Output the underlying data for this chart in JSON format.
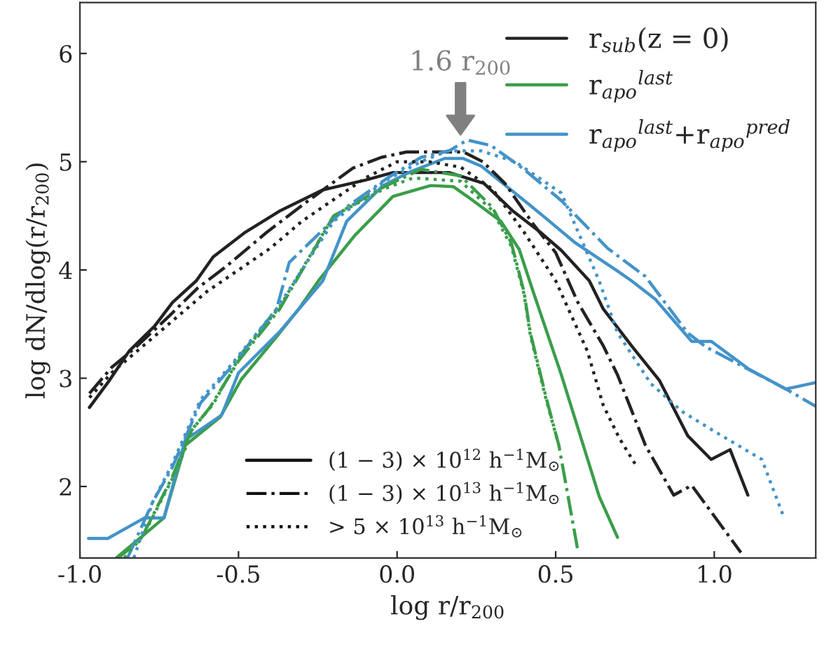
{
  "chart_data": {
    "type": "line",
    "xlabel": "log r/r$_{200}$",
    "ylabel": "log dN/dlog(r/r$_{200}$)",
    "xlim": [
      -1.0,
      1.32
    ],
    "ylim": [
      1.34,
      6.47
    ],
    "xticks": [
      {
        "value": -1,
        "label": "-1.0"
      },
      {
        "value": -0.5,
        "label": "-0.5"
      },
      {
        "value": 0,
        "label": "0.0"
      },
      {
        "value": 0.5,
        "label": "0.5"
      },
      {
        "value": 1,
        "label": "1.0"
      }
    ],
    "yticks": [
      2,
      3,
      4,
      5,
      6
    ],
    "grid": false,
    "legend": "top right",
    "marker": "none",
    "annotations": [
      {
        "text": "1.6 r$_{200}$",
        "x": 0.2,
        "y": 5.25
      },
      "(1 − 3) × 10$^{12}$ h$^{−1}$M$_{⊙}$",
      "(1 − 3) × 10$^{13}$ h$^{−1}$M$_{⊙}$",
      "> 5 × 10$^{13}$ h$^{−1}$M$_{⊙}$"
    ],
    "series": [
      {
        "name": "r$_{sub}$(z = 0)",
        "color": "#222222",
        "line_style": "solid",
        "x": [
          -0.97,
          -0.907,
          -0.845,
          -0.765,
          -0.708,
          -0.633,
          -0.58,
          -0.478,
          -0.367,
          -0.234,
          -0.1,
          -0.013,
          0.075,
          0.164,
          0.274,
          0.363,
          0.451,
          0.518,
          0.606,
          0.65,
          0.739,
          0.827,
          0.916,
          0.99,
          1.05,
          1.106
        ],
        "values": [
          2.73,
          2.98,
          3.25,
          3.48,
          3.7,
          3.9,
          4.12,
          4.35,
          4.55,
          4.74,
          4.83,
          4.9,
          4.9,
          4.9,
          4.8,
          4.55,
          4.35,
          4.18,
          3.9,
          3.64,
          3.3,
          2.98,
          2.47,
          2.25,
          2.34,
          1.92
        ]
      },
      {
        "name": "r$_{apo}$$^{last}$",
        "color": "#3a9e4a",
        "line_style": "solid",
        "x": [
          -0.885,
          -0.735,
          -0.668,
          -0.558,
          -0.491,
          -0.381,
          -0.31,
          -0.248,
          -0.133,
          -0.013,
          0.106,
          0.177,
          0.221,
          0.327,
          0.385,
          0.429,
          0.518,
          0.637,
          0.695
        ],
        "values": [
          1.34,
          1.71,
          2.38,
          2.64,
          2.99,
          3.38,
          3.64,
          3.9,
          4.32,
          4.68,
          4.78,
          4.77,
          4.68,
          4.45,
          4.19,
          3.8,
          3.03,
          1.91,
          1.53
        ]
      },
      {
        "name": "r$_{apo}$$^{last}$+r$_{apo}$$^{pred}$",
        "color": "#4393c9",
        "line_style": "solid",
        "x": [
          -0.973,
          -0.912,
          -0.796,
          -0.735,
          -0.668,
          -0.553,
          -0.5,
          -0.367,
          -0.234,
          -0.159,
          -0.044,
          0.044,
          0.15,
          0.208,
          0.265,
          0.372,
          0.46,
          0.562,
          0.695,
          0.739,
          0.814,
          0.929,
          0.991,
          1.106,
          1.226,
          1.32
        ],
        "values": [
          1.52,
          1.52,
          1.71,
          1.71,
          2.43,
          2.66,
          3.05,
          3.44,
          3.9,
          4.45,
          4.78,
          4.91,
          5.03,
          5.03,
          4.96,
          4.71,
          4.5,
          4.25,
          3.99,
          3.9,
          3.73,
          3.34,
          3.34,
          3.09,
          2.9,
          2.96
        ]
      },
      {
        "color": "#222222",
        "line_style": "dashdot",
        "x": [
          -0.97,
          -0.9,
          -0.83,
          -0.72,
          -0.63,
          -0.54,
          -0.41,
          -0.28,
          -0.14,
          -0.05,
          0.03,
          0.21,
          0.27,
          0.34,
          0.43,
          0.5,
          0.57,
          0.65,
          0.695,
          0.783,
          0.872,
          0.929,
          1.084
        ],
        "values": [
          2.86,
          3.1,
          3.27,
          3.57,
          3.83,
          4.03,
          4.35,
          4.64,
          4.94,
          5.04,
          5.09,
          5.09,
          5.0,
          4.8,
          4.42,
          4.16,
          3.7,
          3.3,
          3.03,
          2.38,
          1.92,
          2.01,
          1.39
        ]
      },
      {
        "color": "#3a9e4a",
        "line_style": "dashdot",
        "x": [
          -0.88,
          -0.81,
          -0.71,
          -0.65,
          -0.59,
          -0.5,
          -0.37,
          -0.2,
          -0.04,
          0.075,
          0.2,
          0.3,
          0.36,
          0.4,
          0.42,
          0.47,
          0.51,
          0.571
        ],
        "values": [
          1.34,
          1.5,
          2.08,
          2.51,
          2.73,
          3.16,
          3.64,
          4.5,
          4.77,
          4.93,
          4.87,
          4.58,
          4.25,
          3.8,
          3.42,
          2.82,
          2.38,
          1.39
        ]
      },
      {
        "color": "#4393c9",
        "line_style": "dashdot",
        "x": [
          -0.85,
          -0.77,
          -0.71,
          -0.62,
          -0.53,
          -0.38,
          -0.34,
          -0.16,
          -0.03,
          0.075,
          0.164,
          0.221,
          0.296,
          0.4,
          0.518,
          0.664,
          0.783,
          0.916,
          0.973,
          1.226,
          1.32
        ],
        "values": [
          1.34,
          1.86,
          2.17,
          2.77,
          3.08,
          3.64,
          4.07,
          4.58,
          4.85,
          5.04,
          5.1,
          5.2,
          5.15,
          4.93,
          4.64,
          4.2,
          3.94,
          3.42,
          3.29,
          2.9,
          2.74
        ]
      },
      {
        "color": "#222222",
        "line_style": "dotted",
        "x": [
          -0.97,
          -0.9,
          -0.8,
          -0.7,
          -0.6,
          -0.5,
          -0.4,
          -0.3,
          -0.2,
          -0.1,
          0.0,
          0.1,
          0.2,
          0.3,
          0.4,
          0.5,
          0.6,
          0.65,
          0.7,
          0.75
        ],
        "values": [
          2.82,
          3.05,
          3.3,
          3.55,
          3.8,
          4.0,
          4.2,
          4.45,
          4.65,
          4.85,
          5.0,
          5.0,
          4.95,
          4.75,
          4.35,
          3.9,
          3.25,
          2.75,
          2.45,
          2.21
        ]
      },
      {
        "color": "#3a9e4a",
        "line_style": "dotted",
        "x": [
          -0.86,
          -0.8,
          -0.7,
          -0.64,
          -0.58,
          -0.5,
          -0.37,
          -0.2,
          -0.04,
          0.05,
          0.2,
          0.3,
          0.36,
          0.4,
          0.42,
          0.47,
          0.51
        ],
        "values": [
          1.34,
          1.55,
          2.12,
          2.55,
          2.76,
          3.18,
          3.66,
          4.5,
          4.75,
          4.85,
          4.82,
          4.55,
          4.22,
          3.78,
          3.4,
          2.8,
          2.38
        ]
      },
      {
        "color": "#4393c9",
        "line_style": "dotted",
        "x": [
          -0.83,
          -0.77,
          -0.71,
          -0.62,
          -0.53,
          -0.38,
          -0.2,
          -0.04,
          0.075,
          0.16,
          0.265,
          0.372,
          0.518,
          0.637,
          0.695,
          0.8,
          0.9,
          1.0,
          1.15,
          1.22
        ],
        "values": [
          1.34,
          1.86,
          2.2,
          2.8,
          3.1,
          3.64,
          4.45,
          4.82,
          5.0,
          5.1,
          5.1,
          5.0,
          4.71,
          3.9,
          3.42,
          2.95,
          2.69,
          2.51,
          2.25,
          1.71
        ]
      }
    ]
  }
}
